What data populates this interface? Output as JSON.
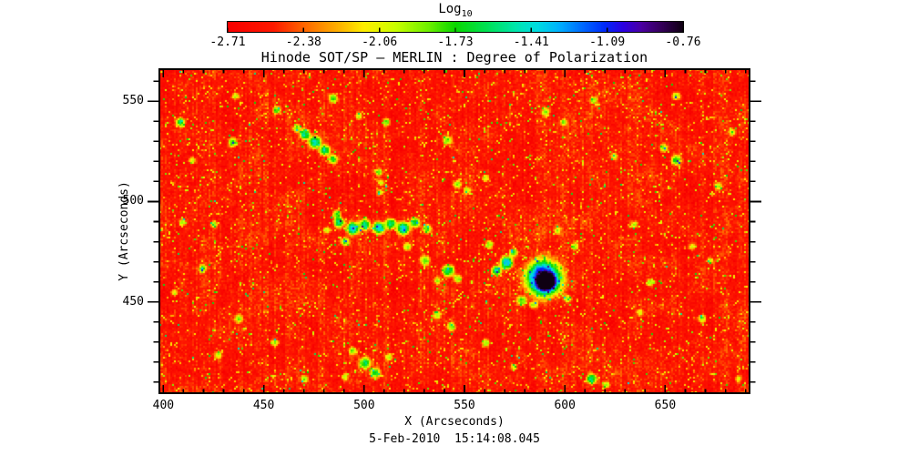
{
  "figure": {
    "title": "Hinode SOT/SP — MERLIN : Degree of Polarization",
    "xlabel": "X (Arcseconds)",
    "ylabel": "Y (Arcseconds)",
    "timestamp": "5-Feb-2010  15:14:08.045",
    "colorbar": {
      "title": "Log",
      "title_sub": "10",
      "tick_labels": [
        "-2.71",
        "-2.38",
        "-2.06",
        "-1.73",
        "-1.41",
        "-1.09",
        "-0.76"
      ]
    }
  },
  "chart_data": {
    "type": "heatmap",
    "title": "Hinode SOT/SP — MERLIN : Degree of Polarization",
    "xlabel": "X (Arcseconds)",
    "ylabel": "Y (Arcseconds)",
    "timestamp": "5-Feb-2010 15:14:08.045",
    "colorbar_title": "Log10",
    "x_range": [
      398,
      692
    ],
    "y_range": [
      404.5,
      566
    ],
    "x_ticks": [
      400,
      450,
      500,
      550,
      600,
      650
    ],
    "y_ticks": [
      550,
      500,
      450
    ],
    "minor_tick_step": 10,
    "value_range": [
      -2.78,
      -0.7
    ],
    "value_ticks": [
      -2.71,
      -2.38,
      -2.06,
      -1.73,
      -1.41,
      -1.09,
      -0.76
    ],
    "background_level": -2.6,
    "legend_position": "top",
    "grid": false,
    "colormap_stops": [
      [
        0.0,
        248,
        0,
        0
      ],
      [
        0.1,
        255,
        25,
        0
      ],
      [
        0.17,
        255,
        105,
        0
      ],
      [
        0.24,
        255,
        175,
        0
      ],
      [
        0.3,
        255,
        238,
        0
      ],
      [
        0.37,
        200,
        255,
        0
      ],
      [
        0.44,
        110,
        240,
        0
      ],
      [
        0.5,
        10,
        215,
        0
      ],
      [
        0.57,
        0,
        225,
        85
      ],
      [
        0.63,
        0,
        230,
        170
      ],
      [
        0.68,
        0,
        220,
        225
      ],
      [
        0.73,
        0,
        175,
        255
      ],
      [
        0.78,
        0,
        105,
        255
      ],
      [
        0.83,
        0,
        40,
        250
      ],
      [
        0.87,
        45,
        0,
        225
      ],
      [
        0.91,
        75,
        0,
        160
      ],
      [
        0.95,
        55,
        0,
        95
      ],
      [
        1.0,
        15,
        0,
        18
      ]
    ],
    "noise": {
      "seed": 1337,
      "lowfreq_amp": 0.07,
      "midfreq_amp": 0.055,
      "white_amp": 0.11,
      "stripe_amp": 0.06,
      "speckle": [
        {
          "prob": 0.0025,
          "base": 0.85,
          "rand": 0.25
        },
        {
          "prob": 0.012,
          "base": 0.6,
          "rand": 0.25
        },
        {
          "prob": 0.055,
          "base": 0.28,
          "rand": 0.22
        }
      ]
    },
    "features_format": [
      "x_arcsec",
      "y_arcsec",
      "radius_arcsec",
      "peak_log10"
    ],
    "features": [
      [
        589,
        462,
        9,
        -0.92
      ],
      [
        590.5,
        460.5,
        4,
        -0.78
      ],
      [
        570.5,
        470,
        3.2,
        -1.28
      ],
      [
        565.5,
        466,
        2.4,
        -1.5
      ],
      [
        574,
        475,
        2,
        -1.7
      ],
      [
        562,
        479,
        2,
        -1.9
      ],
      [
        578,
        451,
        2.4,
        -1.8
      ],
      [
        584,
        449,
        2,
        -1.9
      ],
      [
        601,
        452,
        1.8,
        -1.95
      ],
      [
        604.5,
        478,
        1.8,
        -2.0
      ],
      [
        596,
        486,
        1.8,
        -2.0
      ],
      [
        487,
        490,
        2.6,
        -1.5
      ],
      [
        494,
        487,
        3.2,
        -1.38
      ],
      [
        500,
        489,
        2.6,
        -1.5
      ],
      [
        507,
        487.5,
        3,
        -1.35
      ],
      [
        513,
        489.5,
        2.6,
        -1.5
      ],
      [
        519,
        487,
        3.2,
        -1.4
      ],
      [
        525,
        490,
        2.4,
        -1.6
      ],
      [
        531,
        487,
        2.2,
        -1.75
      ],
      [
        490,
        480.5,
        2.2,
        -1.7
      ],
      [
        486,
        494,
        2,
        -1.8
      ],
      [
        481,
        486,
        1.8,
        -1.95
      ],
      [
        470,
        534,
        2.6,
        -1.5
      ],
      [
        475,
        530,
        3,
        -1.38
      ],
      [
        480,
        526,
        2.6,
        -1.55
      ],
      [
        484,
        521.5,
        2.2,
        -1.7
      ],
      [
        466,
        537,
        1.9,
        -1.85
      ],
      [
        507,
        515,
        1.8,
        -1.85
      ],
      [
        508,
        510,
        1.6,
        -2.0
      ],
      [
        507.5,
        505,
        1.6,
        -2.05
      ],
      [
        510.5,
        540,
        1.9,
        -1.8
      ],
      [
        546,
        509,
        2,
        -1.9
      ],
      [
        551,
        506,
        1.8,
        -1.95
      ],
      [
        541,
        531,
        2.2,
        -1.8
      ],
      [
        521,
        478,
        2,
        -1.9
      ],
      [
        530,
        471,
        2.4,
        -1.75
      ],
      [
        541.5,
        466,
        3,
        -1.5
      ],
      [
        546,
        462,
        2,
        -1.85
      ],
      [
        536,
        461,
        1.8,
        -2.0
      ],
      [
        434,
        530,
        2.2,
        -1.7
      ],
      [
        456,
        546,
        2,
        -1.85
      ],
      [
        435.5,
        553,
        1.8,
        -1.95
      ],
      [
        484,
        552,
        2.2,
        -1.75
      ],
      [
        497,
        543,
        1.8,
        -2.0
      ],
      [
        408,
        540,
        2.2,
        -1.6
      ],
      [
        590,
        545,
        2,
        -1.9
      ],
      [
        599,
        540,
        1.7,
        -2.0
      ],
      [
        614,
        551,
        1.8,
        -1.95
      ],
      [
        655,
        553,
        2,
        -1.9
      ],
      [
        560,
        512,
        1.8,
        -2.0
      ],
      [
        419,
        467,
        2,
        -1.85
      ],
      [
        425,
        489,
        1.8,
        -1.9
      ],
      [
        409,
        490,
        1.8,
        -1.95
      ],
      [
        414,
        521,
        1.8,
        -1.95
      ],
      [
        405,
        455,
        1.7,
        -2.0
      ],
      [
        500,
        420,
        2.8,
        -1.6
      ],
      [
        505,
        415,
        2.4,
        -1.75
      ],
      [
        494,
        426,
        2,
        -1.9
      ],
      [
        512,
        423,
        1.8,
        -2.0
      ],
      [
        490,
        413,
        1.8,
        -1.95
      ],
      [
        613,
        412,
        2.6,
        -1.55
      ],
      [
        620,
        409,
        1.8,
        -1.95
      ],
      [
        560,
        430,
        2,
        -1.9
      ],
      [
        543,
        438,
        2.2,
        -1.85
      ],
      [
        536,
        444,
        2,
        -1.95
      ],
      [
        455,
        430,
        2,
        -1.9
      ],
      [
        437,
        442,
        2,
        -1.95
      ],
      [
        470,
        412,
        1.8,
        -2.0
      ],
      [
        427,
        424,
        1.8,
        -2.0
      ],
      [
        574,
        418,
        1.7,
        -2.0
      ],
      [
        655,
        521,
        2.4,
        -1.75
      ],
      [
        649,
        527,
        2,
        -1.9
      ],
      [
        676,
        508,
        1.9,
        -1.95
      ],
      [
        663,
        478,
        1.8,
        -2.0
      ],
      [
        642,
        460,
        1.8,
        -1.95
      ],
      [
        668,
        442,
        2,
        -1.9
      ],
      [
        683,
        535,
        1.8,
        -1.95
      ],
      [
        637,
        445,
        1.6,
        -2.05
      ],
      [
        672,
        471,
        1.6,
        -2.0
      ],
      [
        686,
        412,
        1.7,
        -2.0
      ],
      [
        634,
        489,
        1.7,
        -2.0
      ],
      [
        624,
        523,
        1.7,
        -2.0
      ]
    ]
  }
}
